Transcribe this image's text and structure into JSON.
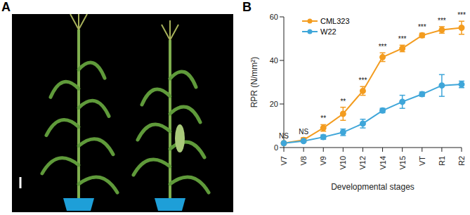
{
  "panel_labels": [
    "A",
    "B"
  ],
  "chart_data": {
    "type": "line",
    "categories": [
      "V7",
      "V8",
      "V9",
      "V10",
      "V12",
      "V14",
      "V15",
      "VT",
      "R1",
      "R2"
    ],
    "series": [
      {
        "name": "CML323",
        "color": "#f39c1f",
        "marker": "circle",
        "values": [
          2,
          3.5,
          9,
          15.5,
          26,
          41.5,
          45.5,
          51.5,
          54,
          55
        ],
        "errors": [
          0.5,
          1,
          1.5,
          3,
          2,
          2,
          1.5,
          1,
          1.5,
          3
        ]
      },
      {
        "name": "W22",
        "color": "#3fa6d9",
        "marker": "circle",
        "values": [
          2,
          3,
          4.8,
          7,
          11,
          17,
          21,
          24.5,
          28.5,
          29
        ],
        "errors": [
          0.3,
          0.5,
          1,
          1.5,
          2,
          1,
          3,
          1,
          5,
          1.5
        ]
      }
    ],
    "significance": [
      "NS",
      "NS",
      "**",
      "**",
      "***",
      "***",
      "***",
      "***",
      "***",
      "***"
    ],
    "ylim": [
      0,
      60
    ],
    "yticks": [
      0,
      20,
      40,
      60
    ],
    "y_label": "RPR (N/mm²)",
    "x_label": "Developmental stages",
    "legend": "upper left"
  }
}
